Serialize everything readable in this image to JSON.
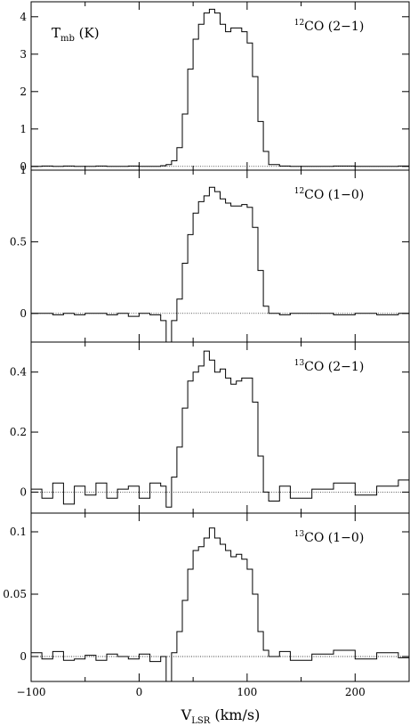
{
  "figure": {
    "xlabel": "V",
    "xlabel_sub": "LSR",
    "xlabel_unit": " (km/s)",
    "ylabel": "T",
    "ylabel_sub": "mb",
    "ylabel_unit": " (K)",
    "colors": {
      "line": "#000000",
      "baseline": "#000000",
      "background": "#ffffff"
    }
  },
  "chart_data": [
    {
      "type": "line",
      "step": true,
      "label_sup": "12",
      "label_main": "CO (2−1)",
      "xlim": [
        -100,
        250
      ],
      "ylim": [
        -0.1,
        4.4
      ],
      "yticks": [
        0,
        1,
        2,
        3,
        4
      ],
      "yticklabels": [
        "0",
        "1",
        "2",
        "3",
        "4"
      ],
      "x": [
        -100,
        -90,
        -80,
        -70,
        -60,
        -50,
        -40,
        -30,
        -20,
        -10,
        0,
        10,
        20,
        25,
        30,
        35,
        40,
        45,
        50,
        55,
        60,
        65,
        70,
        75,
        80,
        85,
        90,
        95,
        100,
        105,
        110,
        115,
        120,
        130,
        140,
        160,
        180,
        200,
        220,
        240,
        250
      ],
      "values": [
        0.0,
        0.01,
        0.0,
        0.01,
        0.0,
        0.0,
        0.01,
        0.0,
        0.0,
        0.01,
        0.0,
        0.0,
        0.02,
        0.05,
        0.15,
        0.5,
        1.4,
        2.6,
        3.4,
        3.8,
        4.1,
        4.2,
        4.1,
        3.8,
        3.6,
        3.7,
        3.7,
        3.6,
        3.3,
        2.4,
        1.2,
        0.4,
        0.05,
        0.01,
        0.0,
        0.0,
        0.01,
        0.0,
        0.0,
        0.01,
        0.0
      ],
      "annotation": "T_mb (K)"
    },
    {
      "type": "line",
      "step": true,
      "label_sup": "12",
      "label_main": "CO (1−0)",
      "xlim": [
        -100,
        250
      ],
      "ylim": [
        -0.2,
        1.0
      ],
      "yticks": [
        0,
        0.5,
        1
      ],
      "yticklabels": [
        "0",
        "0.5",
        "1"
      ],
      "x": [
        -100,
        -90,
        -80,
        -70,
        -60,
        -50,
        -40,
        -30,
        -20,
        -10,
        0,
        10,
        20,
        25,
        30,
        35,
        40,
        45,
        50,
        55,
        60,
        65,
        70,
        75,
        80,
        85,
        90,
        95,
        100,
        105,
        110,
        115,
        120,
        130,
        140,
        160,
        180,
        200,
        220,
        240,
        250
      ],
      "values": [
        0.0,
        0.0,
        -0.01,
        0.0,
        -0.01,
        0.0,
        0.0,
        -0.01,
        0.0,
        -0.02,
        0.0,
        -0.01,
        -0.05,
        -0.2,
        -0.05,
        0.1,
        0.35,
        0.55,
        0.7,
        0.78,
        0.82,
        0.88,
        0.85,
        0.8,
        0.77,
        0.75,
        0.75,
        0.76,
        0.74,
        0.6,
        0.3,
        0.05,
        0.0,
        -0.01,
        0.0,
        0.0,
        -0.01,
        0.0,
        -0.01,
        0.0,
        0.0
      ]
    },
    {
      "type": "line",
      "step": true,
      "label_sup": "13",
      "label_main": "CO (2−1)",
      "xlim": [
        -100,
        250
      ],
      "ylim": [
        -0.07,
        0.5
      ],
      "yticks": [
        0,
        0.2,
        0.4
      ],
      "yticklabels": [
        "0",
        "0.2",
        "0.4"
      ],
      "x": [
        -100,
        -90,
        -80,
        -70,
        -60,
        -50,
        -40,
        -30,
        -20,
        -10,
        0,
        10,
        20,
        25,
        30,
        35,
        40,
        45,
        50,
        55,
        60,
        65,
        70,
        75,
        80,
        85,
        90,
        95,
        100,
        105,
        110,
        115,
        120,
        130,
        140,
        160,
        180,
        200,
        220,
        240,
        250
      ],
      "values": [
        0.01,
        -0.02,
        0.03,
        -0.04,
        0.02,
        -0.01,
        0.03,
        -0.02,
        0.01,
        0.02,
        -0.02,
        0.03,
        0.02,
        -0.05,
        0.05,
        0.15,
        0.28,
        0.37,
        0.4,
        0.42,
        0.47,
        0.44,
        0.4,
        0.41,
        0.38,
        0.36,
        0.37,
        0.38,
        0.38,
        0.3,
        0.12,
        0.0,
        -0.03,
        0.02,
        -0.02,
        0.01,
        0.03,
        -0.01,
        0.02,
        0.04,
        0.02
      ]
    },
    {
      "type": "line",
      "step": true,
      "label_sup": "13",
      "label_main": "CO (1−0)",
      "xlim": [
        -100,
        250
      ],
      "ylim": [
        -0.02,
        0.115
      ],
      "yticks": [
        0,
        0.05,
        0.1
      ],
      "yticklabels": [
        "0",
        "0.05",
        "0.1"
      ],
      "xticks": [
        -100,
        0,
        100,
        200
      ],
      "xticklabels": [
        "−100",
        "0",
        "100",
        "200"
      ],
      "x": [
        -100,
        -90,
        -80,
        -70,
        -60,
        -50,
        -40,
        -30,
        -20,
        -10,
        0,
        10,
        20,
        25,
        30,
        35,
        40,
        45,
        50,
        55,
        60,
        65,
        70,
        75,
        80,
        85,
        90,
        95,
        100,
        105,
        110,
        115,
        120,
        130,
        140,
        160,
        180,
        200,
        220,
        240,
        250
      ],
      "values": [
        0.003,
        -0.002,
        0.004,
        -0.003,
        -0.002,
        0.001,
        -0.003,
        0.002,
        0.0,
        -0.002,
        0.002,
        -0.004,
        0.0,
        -0.02,
        0.003,
        0.02,
        0.045,
        0.07,
        0.085,
        0.088,
        0.095,
        0.103,
        0.095,
        0.09,
        0.085,
        0.08,
        0.082,
        0.078,
        0.07,
        0.05,
        0.02,
        0.005,
        0.0,
        0.004,
        -0.003,
        0.002,
        0.005,
        -0.002,
        0.003,
        -0.001,
        0.0
      ]
    }
  ]
}
